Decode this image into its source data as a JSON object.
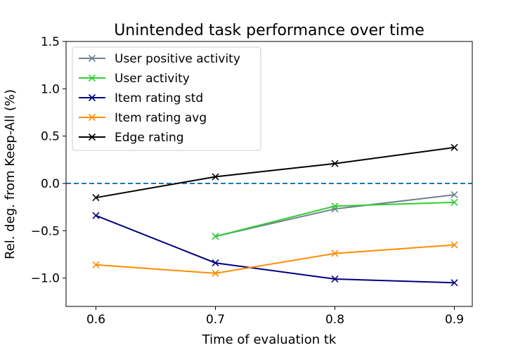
{
  "chart_data": {
    "type": "line",
    "title": "Unintended task performance over time",
    "xlabel": "Time of evaluation tk",
    "ylabel": "Rel. deg. from Keep-All (%)",
    "xlim": [
      0.575,
      0.915
    ],
    "ylim": [
      -1.3,
      1.5
    ],
    "xticks": [
      0.6,
      0.7,
      0.8,
      0.9
    ],
    "xtick_labels": [
      "0.6",
      "0.7",
      "0.8",
      "0.9"
    ],
    "yticks": [
      -1.0,
      -0.5,
      0.0,
      0.5,
      1.0,
      1.5
    ],
    "ytick_labels": [
      "−1.0",
      "−0.5",
      "0.0",
      "0.5",
      "1.0",
      "1.5"
    ],
    "reference_line": {
      "y": 0.0,
      "style": "dashed",
      "color": "#1f77b4"
    },
    "legend_position": "top-left",
    "marker": "x",
    "series": [
      {
        "name": "User positive activity",
        "color": "#708090",
        "x": [
          0.7,
          0.8,
          0.9
        ],
        "y": [
          -0.56,
          -0.27,
          -0.12
        ]
      },
      {
        "name": "User activity",
        "color": "#32cd32",
        "x": [
          0.7,
          0.8,
          0.9
        ],
        "y": [
          -0.56,
          -0.24,
          -0.2
        ]
      },
      {
        "name": "Item rating std",
        "color": "#000080",
        "x": [
          0.6,
          0.7,
          0.8,
          0.9
        ],
        "y": [
          -0.34,
          -0.84,
          -1.01,
          -1.05
        ]
      },
      {
        "name": "Item rating avg",
        "color": "#ff8c00",
        "x": [
          0.6,
          0.7,
          0.8,
          0.9
        ],
        "y": [
          -0.86,
          -0.95,
          -0.74,
          -0.65
        ]
      },
      {
        "name": "Edge rating",
        "color": "#000000",
        "x": [
          0.6,
          0.7,
          0.8,
          0.9
        ],
        "y": [
          -0.15,
          0.07,
          0.21,
          0.38
        ]
      }
    ]
  }
}
